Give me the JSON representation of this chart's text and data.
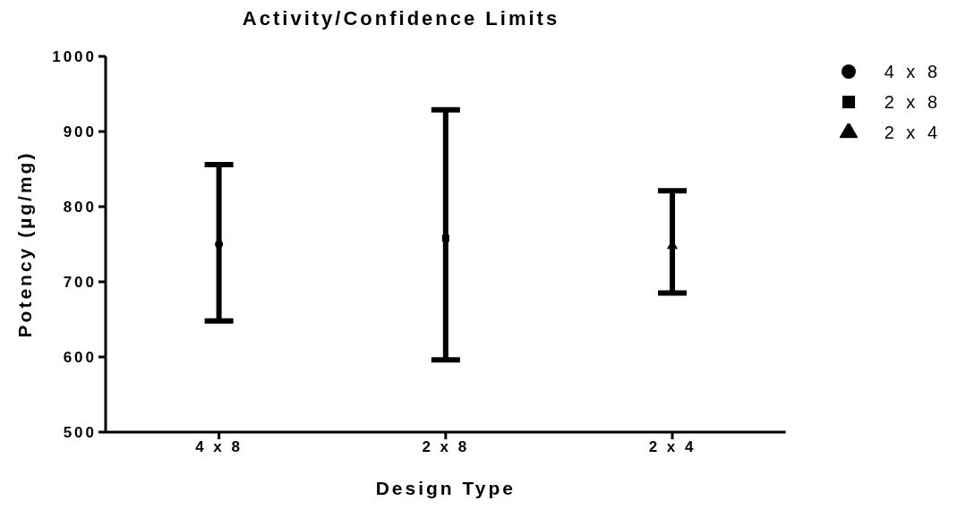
{
  "chart_data": {
    "type": "scatter",
    "title": "Activity/Confidence Limits",
    "xlabel": "Design Type",
    "ylabel": "Potency (µg/mg)",
    "categories": [
      "4 x 8",
      "2 x 8",
      "2 x 4"
    ],
    "series": [
      {
        "name": "4 x 8",
        "color": "#000000",
        "marker": "circle",
        "values": [
          750,
          null,
          null
        ],
        "errors": [
          [
            648,
            856
          ],
          null,
          null
        ]
      },
      {
        "name": "2 x 8",
        "color": "#000000",
        "marker": "square",
        "values": [
          null,
          758,
          null
        ],
        "errors": [
          null,
          [
            596,
            929
          ],
          null
        ]
      },
      {
        "name": "2 x 4",
        "color": "#000000",
        "marker": "triangle",
        "values": [
          null,
          null,
          748
        ],
        "errors": [
          null,
          null,
          [
            685,
            821
          ]
        ]
      }
    ],
    "ylim": [
      500,
      1000
    ],
    "yticks": [
      500,
      600,
      700,
      800,
      900,
      1000
    ],
    "grid": false,
    "legend": "top right"
  }
}
